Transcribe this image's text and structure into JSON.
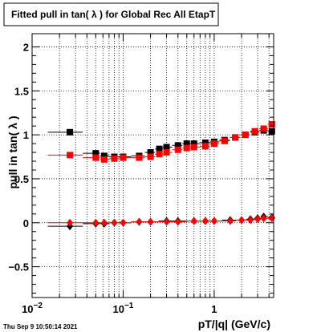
{
  "chart_data": {
    "type": "scatter",
    "title": "Fitted pull in tan( λ ) for Global Rec All EtapT",
    "xlabel": "pT/|q| (GeV/c)",
    "ylabel": "pull in tan( λ )",
    "x_scale": "log",
    "xlim": [
      0.01,
      4.5
    ],
    "ylim": [
      -0.85,
      2.15
    ],
    "grid": true,
    "x_ticks": [
      {
        "value": 0.01,
        "base": "10",
        "exp": "−2"
      },
      {
        "value": 0.1,
        "base": "10",
        "exp": "−1"
      },
      {
        "value": 1,
        "base": "1",
        "exp": ""
      }
    ],
    "y_ticks": [
      {
        "value": -0.5,
        "label": "−0.5"
      },
      {
        "value": 0,
        "label": "0"
      },
      {
        "value": 0.5,
        "label": "0.5"
      },
      {
        "value": 1,
        "label": "1"
      },
      {
        "value": 1.5,
        "label": "1.5"
      },
      {
        "value": 2,
        "label": "2"
      }
    ],
    "series": [
      {
        "color": "#000000",
        "marker": "square",
        "x": [
          0.026,
          0.05,
          0.062,
          0.08,
          0.1,
          0.15,
          0.2,
          0.25,
          0.3,
          0.4,
          0.5,
          0.6,
          0.8,
          1.0,
          1.3,
          1.7,
          2.2,
          2.8,
          3.5,
          4.3
        ],
        "y": [
          1.03,
          0.79,
          0.76,
          0.75,
          0.75,
          0.76,
          0.8,
          0.84,
          0.86,
          0.88,
          0.9,
          0.9,
          0.91,
          0.92,
          0.94,
          0.97,
          1.0,
          1.03,
          1.05,
          1.04
        ]
      },
      {
        "color": "#000000",
        "marker": "diamond",
        "x": [
          0.026,
          0.05,
          0.062,
          0.08,
          0.1,
          0.15,
          0.2,
          0.3,
          0.4,
          0.6,
          0.8,
          1.0,
          1.5,
          2.0,
          2.5,
          3.0,
          3.5,
          4.3
        ],
        "y": [
          -0.04,
          -0.01,
          -0.01,
          0.0,
          0.0,
          0.01,
          0.01,
          0.02,
          0.02,
          0.02,
          0.02,
          0.02,
          0.03,
          0.03,
          0.04,
          0.05,
          0.07,
          0.06
        ]
      },
      {
        "color": "#ff0000",
        "marker": "square",
        "x": [
          0.026,
          0.05,
          0.062,
          0.08,
          0.1,
          0.15,
          0.2,
          0.25,
          0.3,
          0.4,
          0.5,
          0.6,
          0.8,
          1.0,
          1.3,
          1.7,
          2.2,
          2.8,
          3.5,
          4.3
        ],
        "y": [
          0.77,
          0.74,
          0.72,
          0.73,
          0.74,
          0.74,
          0.75,
          0.78,
          0.8,
          0.83,
          0.85,
          0.86,
          0.87,
          0.9,
          0.93,
          0.97,
          1.0,
          1.04,
          1.07,
          1.12
        ]
      },
      {
        "color": "#ff0000",
        "marker": "diamond",
        "x": [
          0.026,
          0.05,
          0.062,
          0.08,
          0.1,
          0.15,
          0.2,
          0.3,
          0.4,
          0.6,
          0.8,
          1.0,
          1.5,
          2.0,
          2.5,
          3.0,
          3.5,
          4.3
        ],
        "y": [
          0.0,
          0.0,
          0.0,
          0.0,
          0.0,
          0.01,
          0.01,
          0.01,
          0.01,
          0.02,
          0.02,
          0.02,
          0.02,
          0.03,
          0.03,
          0.04,
          0.05,
          0.05
        ]
      }
    ]
  },
  "timestamp": "Thu Sep  9 10:50:14 2021"
}
